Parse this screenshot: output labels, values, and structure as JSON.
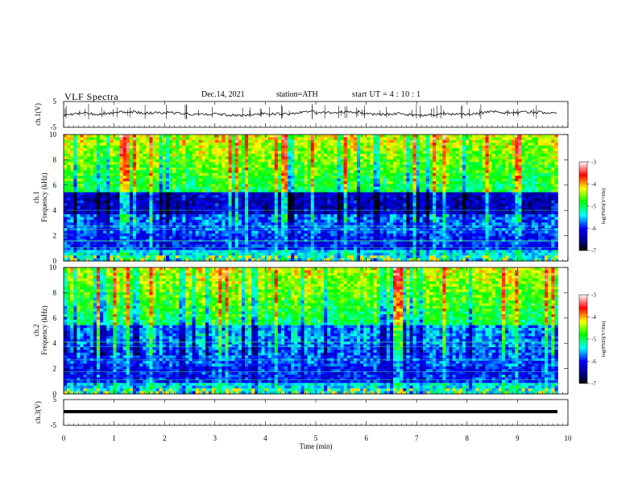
{
  "header": {
    "title": "VLF  Spectra",
    "date": "Dec.14, 2021",
    "station": "station=ATH",
    "start": "start  UT  =   4  : 10 : 1"
  },
  "chart_data": [
    {
      "type": "line",
      "panel": "ch1-waveform",
      "ylabel": "ch.1(V)",
      "ylim": [
        -5,
        5
      ],
      "yticks": [
        "5",
        "-5"
      ],
      "xlim": [
        0,
        10
      ]
    },
    {
      "type": "heatmap",
      "panel": "ch1-spectrogram",
      "ylabel": "ch.1\nFrequency (kHz)",
      "ylim": [
        0,
        10
      ],
      "yticks": [
        "0",
        "2",
        "4",
        "6",
        "8",
        "10"
      ],
      "xlim": [
        0,
        10
      ],
      "data_end_min": 9.8,
      "colorbar": {
        "label": "log(PSD)(V²/Hz)",
        "range": [
          -7,
          -3
        ],
        "ticks": [
          "-3",
          "-4",
          "-5",
          "-6",
          "-7"
        ]
      }
    },
    {
      "type": "heatmap",
      "panel": "ch2-spectrogram",
      "ylabel": "ch.2\nFrequency (kHz)",
      "ylim": [
        0,
        10
      ],
      "yticks": [
        "0",
        "2",
        "4",
        "6",
        "8",
        "10"
      ],
      "xlim": [
        0,
        10
      ],
      "data_end_min": 9.8,
      "colorbar": {
        "label": "log(PSD)(V²/Hz)",
        "range": [
          -7,
          -3
        ],
        "ticks": [
          "-3",
          "-4",
          "-5",
          "-6",
          "-7"
        ]
      }
    },
    {
      "type": "line",
      "panel": "ch3-waveform",
      "ylabel": "ch.3(V)",
      "ylim": [
        -5,
        5
      ],
      "yticks": [
        "5",
        "-5"
      ],
      "xlim": [
        0,
        10
      ],
      "xlabel": "Time  (min)",
      "xticks": [
        "0",
        "1",
        "2",
        "3",
        "4",
        "5",
        "6",
        "7",
        "8",
        "9",
        "10"
      ]
    }
  ]
}
